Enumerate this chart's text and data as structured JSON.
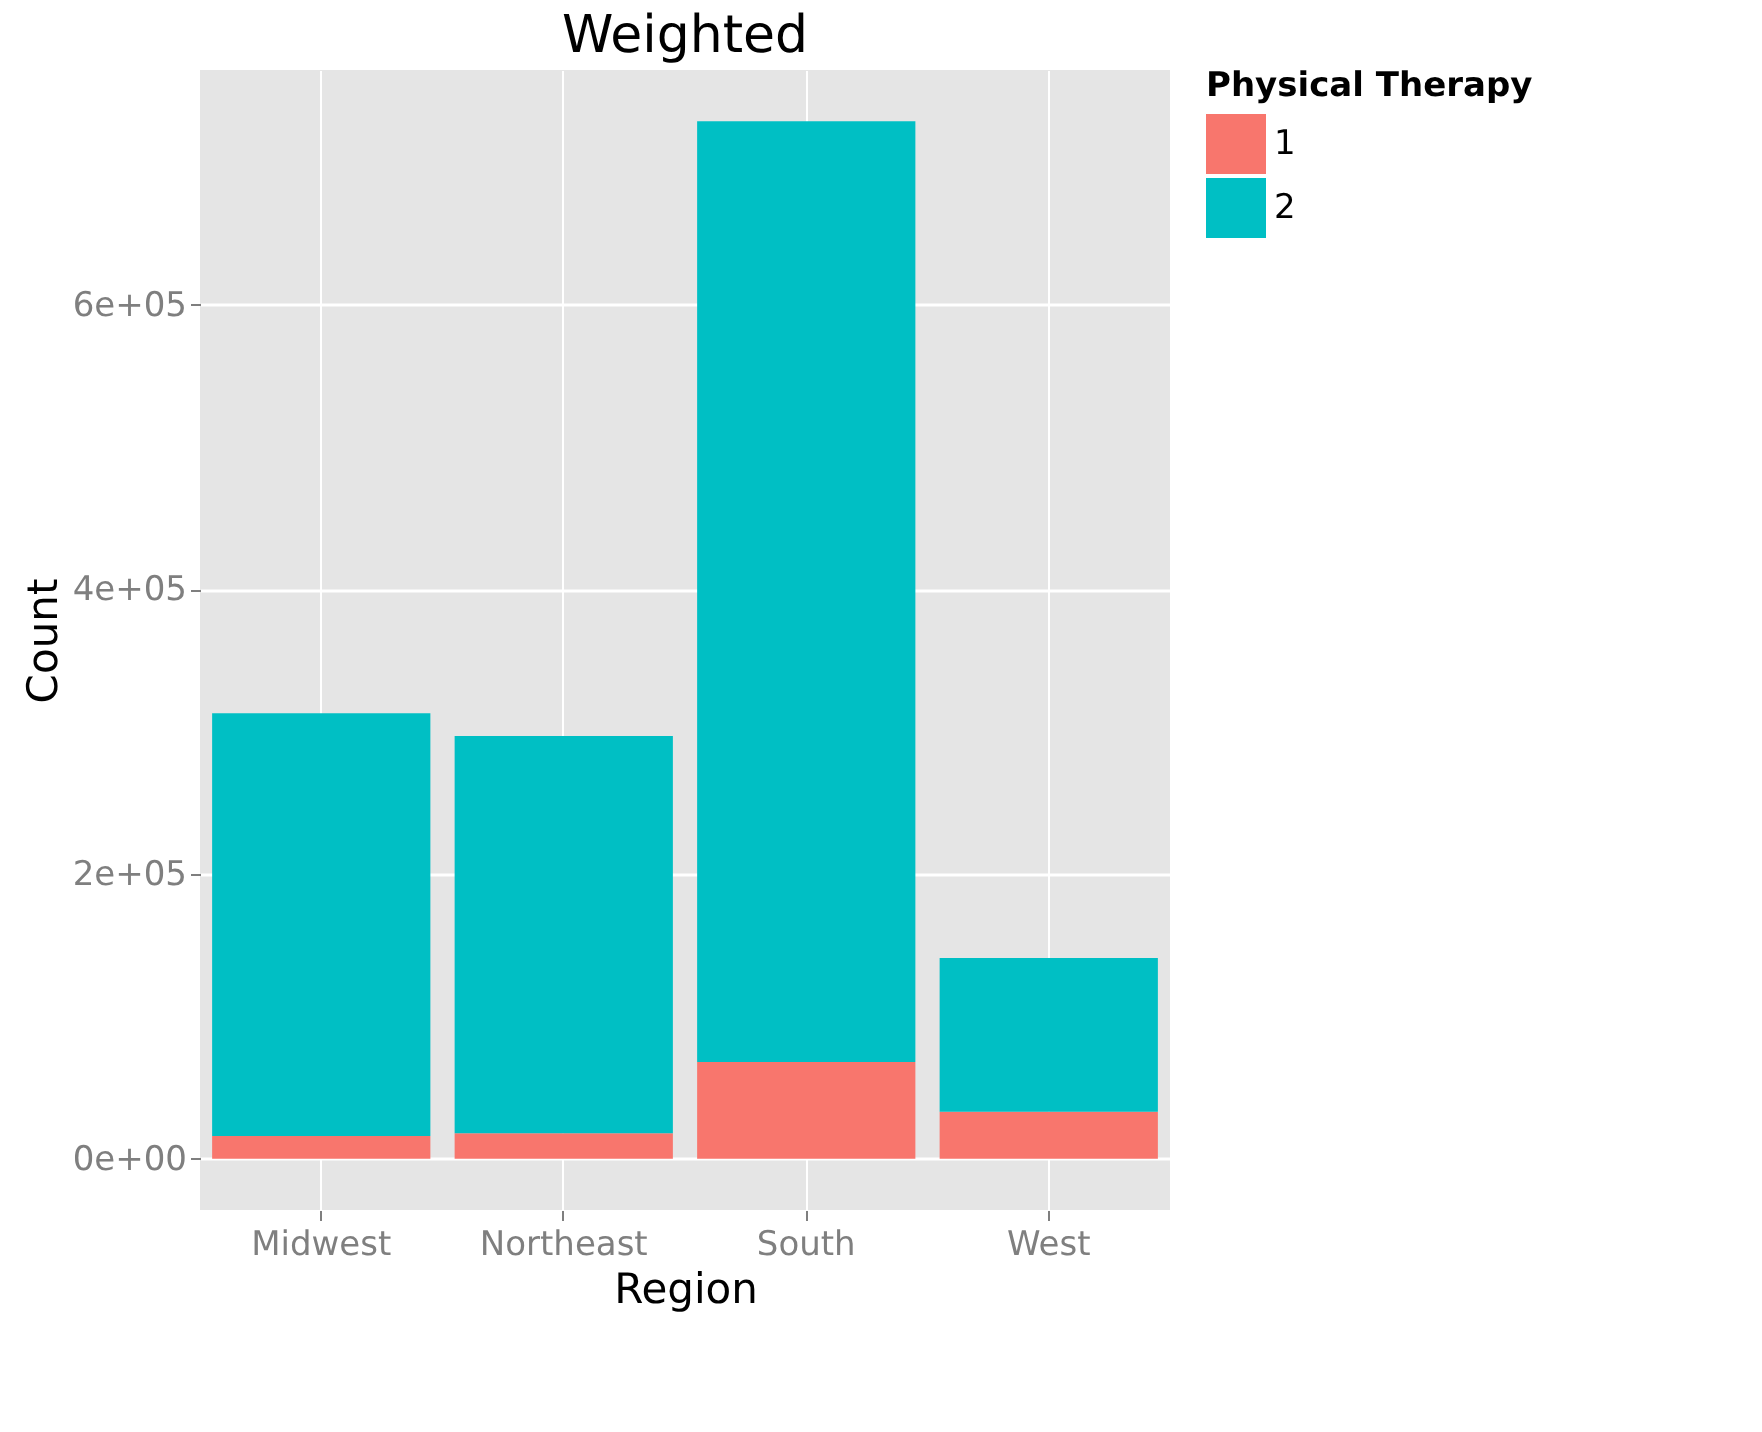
{
  "chart_data": {
    "type": "bar",
    "title": "Weighted",
    "xlabel": "Region",
    "ylabel": "Count",
    "legend_title": "Physical Therapy",
    "stacked": true,
    "categories": [
      "Midwest",
      "Northeast",
      "South",
      "West"
    ],
    "series": [
      {
        "name": "1",
        "color": "#f8766d",
        "values": [
          16000,
          18000,
          68000,
          33000
        ]
      },
      {
        "name": "2",
        "color": "#00bfc4",
        "values": [
          297000,
          279000,
          661000,
          108000
        ]
      }
    ],
    "ylim": [
      -36000,
      765000
    ],
    "yticks": [
      {
        "value": 0,
        "label": "0e+00"
      },
      {
        "value": 200000,
        "label": "2e+05"
      },
      {
        "value": 400000,
        "label": "4e+05"
      },
      {
        "value": 600000,
        "label": "6e+05"
      }
    ],
    "grid": true,
    "legend": "right"
  }
}
